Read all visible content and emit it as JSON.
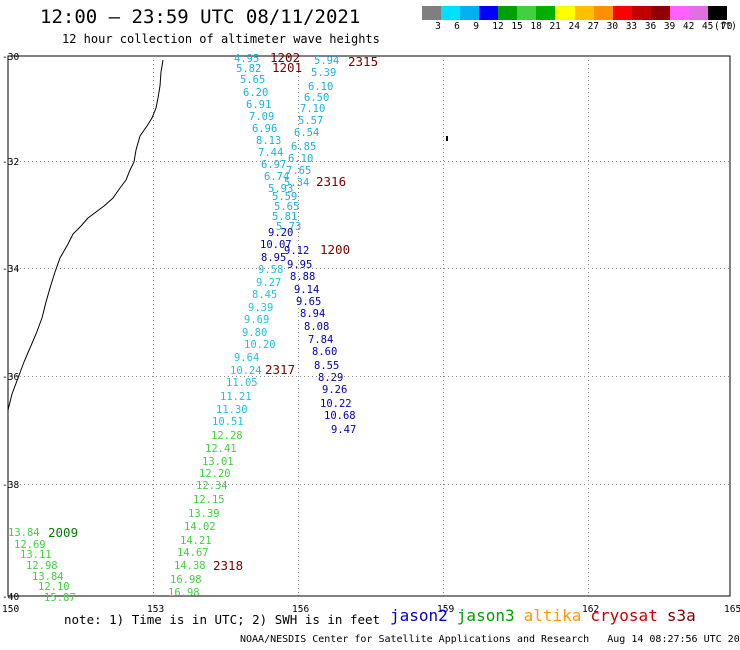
{
  "header": {
    "title": "12:00 – 23:59 UTC 08/11/2021",
    "subtitle": "12 hour collection of altimeter wave heights"
  },
  "colorbar": {
    "unit": "(ft)",
    "ticks": [
      "3",
      "6",
      "9",
      "12",
      "15",
      "18",
      "21",
      "24",
      "27",
      "30",
      "33",
      "36",
      "39",
      "42",
      "45",
      "70"
    ],
    "colors": [
      "#7f7f7f",
      "#00e0ff",
      "#00b0f0",
      "#0000ff",
      "#00a000",
      "#40d040",
      "#00b000",
      "#ffff00",
      "#ffc000",
      "#ff9000",
      "#ff0000",
      "#c00000",
      "#900000",
      "#ff60ff",
      "#e070e0",
      "#000000"
    ]
  },
  "axes": {
    "lat_labels": [
      "-30",
      "-32",
      "-34",
      "-36",
      "-38",
      "-40"
    ],
    "lon_labels": [
      "150",
      "153",
      "156",
      "159",
      "162",
      "165"
    ]
  },
  "tracks": {
    "upper_left_cyan": [
      "4.95",
      "5.82",
      "5.65",
      "6.20",
      "6.91",
      "7.09",
      "6.96",
      "8.13",
      "7.44",
      "6.97",
      "6.74",
      "5.93",
      "5.59",
      "5.65",
      "5.81",
      "5.73"
    ],
    "upper_right_cyan": [
      "5.94",
      "5.39",
      "6.10",
      "6.50",
      "7.10",
      "5.57",
      "6.54",
      "6.85",
      "6.10",
      "7.65",
      "5.34"
    ],
    "middle_blue": [
      "9.20",
      "10.07",
      "9.12",
      "8.95",
      "9.95",
      "9.58",
      "8.88",
      "9.27",
      "9.14",
      "8.45",
      "9.65",
      "9.39",
      "8.94",
      "9.69",
      "8.08",
      "9.80",
      "7.84",
      "10.20",
      "8.60",
      "9.64",
      "8.55",
      "10.24",
      "8.29",
      "11.05",
      "9.26",
      "11.21",
      "10.22",
      "11.30",
      "10.68",
      "10.51",
      "9.47"
    ],
    "lower_green": [
      "12.28",
      "12.41",
      "13.01",
      "12.20",
      "12.34",
      "12.15",
      "13.39",
      "14.02",
      "14.21",
      "14.67",
      "14.38",
      "16.98",
      "16.98"
    ],
    "far_left_green": [
      "13.84",
      "12.69",
      "13.11",
      "12.98",
      "13.84",
      "12.10",
      "15.87"
    ]
  },
  "time_labels": [
    "1202",
    "1201",
    "2315",
    "2316",
    "1200",
    "2317",
    "2318",
    "2009"
  ],
  "footer": {
    "note": "note: 1) Time is in UTC; 2) SWH is in feet",
    "legend": [
      {
        "name": "jason2",
        "color": "#0000cc"
      },
      {
        "name": "jason3",
        "color": "#00a000"
      },
      {
        "name": "altika",
        "color": "#ff9900"
      },
      {
        "name": "cryosat",
        "color": "#cc0000"
      },
      {
        "name": "s3a",
        "color": "#800000"
      }
    ],
    "credit": "NOAA/NESDIS Center for Satellite Applications and Research",
    "timestamp": "Aug 14 08:27:56 UTC 2021"
  }
}
